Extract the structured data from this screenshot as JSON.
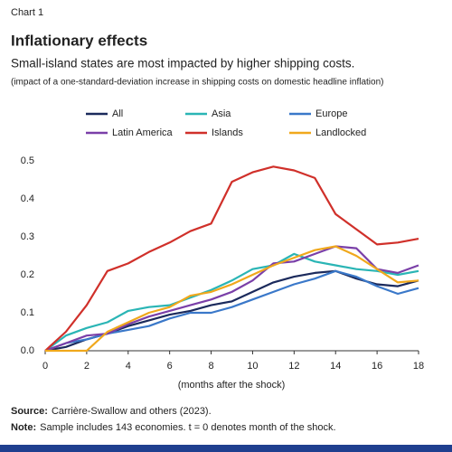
{
  "chart_data": {
    "type": "line",
    "label": "Chart 1",
    "title": "Inflationary effects",
    "subtitle": "Small-island states are most impacted by higher shipping costs.",
    "description": "(impact of a one-standard-deviation increase in shipping costs on domestic headline inflation)",
    "x_label": "(months after the shock)",
    "x": [
      0,
      1,
      2,
      3,
      4,
      5,
      6,
      7,
      8,
      9,
      10,
      11,
      12,
      13,
      14,
      15,
      16,
      17,
      18
    ],
    "xlim": [
      0,
      18
    ],
    "xticks": [
      0,
      2,
      4,
      6,
      8,
      10,
      12,
      14,
      16,
      18
    ],
    "ylim": [
      0,
      0.5
    ],
    "yticks": [
      {
        "value": 0,
        "label": "0.0"
      },
      0.1,
      0.2,
      0.3,
      0.4,
      0.5
    ],
    "grid": false,
    "series": [
      {
        "name": "All",
        "color": "#1b2a5c",
        "values": [
          0,
          0.01,
          0.03,
          0.045,
          0.065,
          0.08,
          0.095,
          0.105,
          0.12,
          0.13,
          0.155,
          0.18,
          0.195,
          0.205,
          0.21,
          0.19,
          0.175,
          0.17,
          0.185
        ]
      },
      {
        "name": "Asia",
        "color": "#2ab5b5",
        "values": [
          0,
          0.04,
          0.06,
          0.075,
          0.105,
          0.115,
          0.12,
          0.14,
          0.16,
          0.185,
          0.215,
          0.225,
          0.255,
          0.235,
          0.225,
          0.215,
          0.21,
          0.2,
          0.21
        ]
      },
      {
        "name": "Europe",
        "color": "#3a78c9",
        "values": [
          0,
          0.02,
          0.03,
          0.045,
          0.055,
          0.065,
          0.085,
          0.1,
          0.1,
          0.115,
          0.135,
          0.155,
          0.175,
          0.19,
          0.21,
          0.195,
          0.17,
          0.15,
          0.165
        ]
      },
      {
        "name": "Latin America",
        "color": "#7a3fa8",
        "values": [
          0,
          0.02,
          0.04,
          0.045,
          0.07,
          0.09,
          0.105,
          0.12,
          0.135,
          0.155,
          0.185,
          0.23,
          0.235,
          0.255,
          0.275,
          0.27,
          0.215,
          0.205,
          0.225
        ]
      },
      {
        "name": "Islands",
        "color": "#d0302a",
        "values": [
          0,
          0.05,
          0.12,
          0.21,
          0.23,
          0.26,
          0.285,
          0.315,
          0.335,
          0.445,
          0.47,
          0.485,
          0.475,
          0.455,
          0.36,
          0.32,
          0.28,
          0.285,
          0.295
        ]
      },
      {
        "name": "Landlocked",
        "color": "#f0a81c",
        "values": [
          0,
          0,
          0,
          0.05,
          0.075,
          0.1,
          0.115,
          0.145,
          0.155,
          0.175,
          0.2,
          0.225,
          0.245,
          0.265,
          0.275,
          0.25,
          0.215,
          0.18,
          0.185
        ]
      }
    ],
    "notes": [
      {
        "label": "Source:",
        "text": "Carrière-Swallow and others (2023)."
      },
      {
        "label": "Note:",
        "text": "Sample includes 143 economies. t = 0 denotes month of the shock."
      }
    ]
  }
}
